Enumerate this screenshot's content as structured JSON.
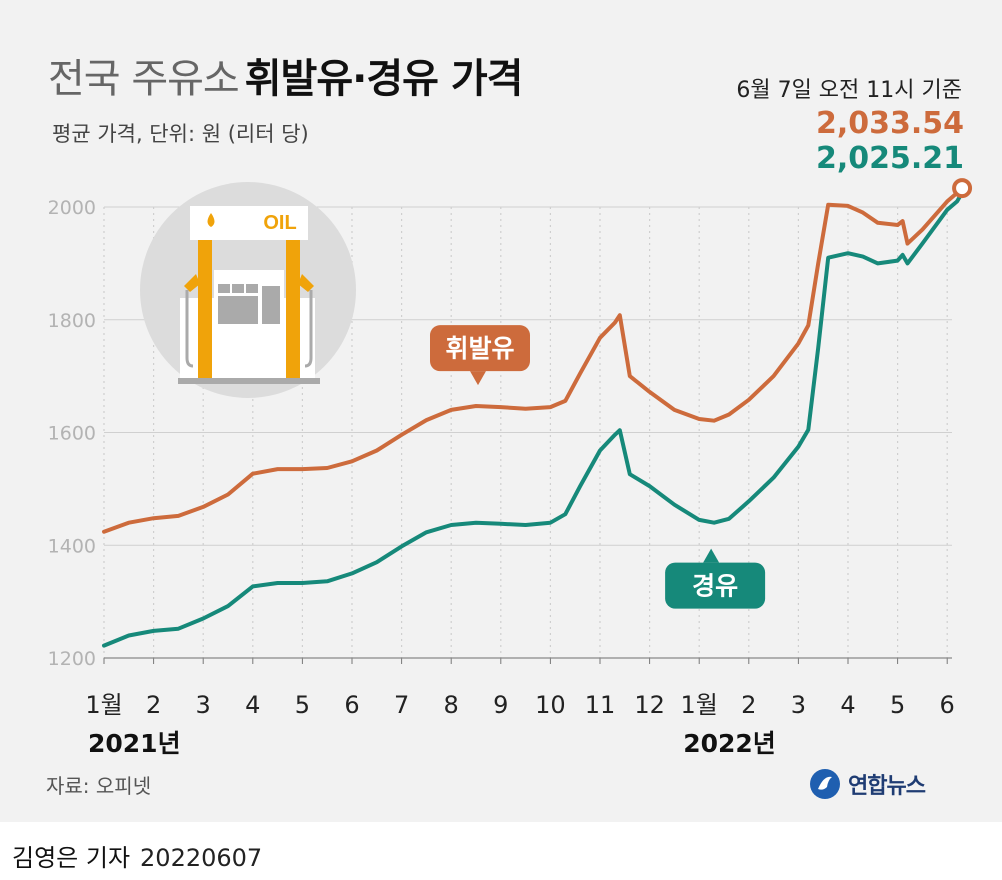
{
  "title": {
    "light": "전국 주유소",
    "bold": "휘발유·경유 가격"
  },
  "subtitle": "평균 가격, 단위: 원 (리터 당)",
  "as_of": "6월 7일 오전 11시 기준",
  "latest": {
    "gasoline": "2,033.54",
    "diesel": "2,025.21"
  },
  "source": "자료: 오피넷",
  "logo_text": "연합뉴스",
  "byline": {
    "name": "김영은 기자",
    "date": "20220607"
  },
  "icon": {
    "oil_sign": "OIL"
  },
  "colors": {
    "gasoline": "#cd6b3c",
    "diesel": "#16897a",
    "pump": "#f0a30a"
  },
  "chart_data": {
    "type": "line",
    "title": "전국 주유소 휘발유·경유 가격",
    "xlabel": "",
    "ylabel": "",
    "ylim": [
      1200,
      2000
    ],
    "yticks": [
      1200,
      1400,
      1600,
      1800,
      2000
    ],
    "grid": true,
    "xaxis": {
      "ticks": [
        {
          "label": "1월",
          "m": 0
        },
        {
          "label": "2",
          "m": 1
        },
        {
          "label": "3",
          "m": 2
        },
        {
          "label": "4",
          "m": 3
        },
        {
          "label": "5",
          "m": 4
        },
        {
          "label": "6",
          "m": 5
        },
        {
          "label": "7",
          "m": 6
        },
        {
          "label": "8",
          "m": 7
        },
        {
          "label": "9",
          "m": 8
        },
        {
          "label": "10",
          "m": 9
        },
        {
          "label": "11",
          "m": 10
        },
        {
          "label": "12",
          "m": 11
        },
        {
          "label": "1월",
          "m": 12
        },
        {
          "label": "2",
          "m": 13
        },
        {
          "label": "3",
          "m": 14
        },
        {
          "label": "4",
          "m": 15
        },
        {
          "label": "5",
          "m": 16
        },
        {
          "label": "6",
          "m": 17
        }
      ],
      "year_labels": [
        {
          "label": "2021년",
          "m": 0
        },
        {
          "label": "2022년",
          "m": 12
        }
      ]
    },
    "series": [
      {
        "name": "휘발유",
        "label_anchor": [
          7.5,
          1652
        ],
        "points": [
          [
            0,
            1424
          ],
          [
            0.5,
            1440
          ],
          [
            1,
            1448
          ],
          [
            1.5,
            1452
          ],
          [
            2,
            1468
          ],
          [
            2.5,
            1490
          ],
          [
            3,
            1527
          ],
          [
            3.5,
            1535
          ],
          [
            4,
            1535
          ],
          [
            4.5,
            1537
          ],
          [
            5,
            1549
          ],
          [
            5.5,
            1568
          ],
          [
            6,
            1596
          ],
          [
            6.5,
            1622
          ],
          [
            7,
            1640
          ],
          [
            7.5,
            1647
          ],
          [
            8,
            1645
          ],
          [
            8.5,
            1642
          ],
          [
            9,
            1645
          ],
          [
            9.3,
            1656
          ],
          [
            9.6,
            1705
          ],
          [
            10,
            1768
          ],
          [
            10.3,
            1795
          ],
          [
            10.4,
            1808
          ],
          [
            10.6,
            1700
          ],
          [
            11,
            1672
          ],
          [
            11.5,
            1640
          ],
          [
            12,
            1624
          ],
          [
            12.3,
            1621
          ],
          [
            12.6,
            1632
          ],
          [
            13,
            1658
          ],
          [
            13.5,
            1700
          ],
          [
            14,
            1758
          ],
          [
            14.2,
            1790
          ],
          [
            14.4,
            1900
          ],
          [
            14.6,
            2004
          ],
          [
            15,
            2002
          ],
          [
            15.3,
            1990
          ],
          [
            15.6,
            1972
          ],
          [
            16,
            1968
          ],
          [
            16.1,
            1975
          ],
          [
            16.2,
            1935
          ],
          [
            16.5,
            1960
          ],
          [
            17,
            2010
          ],
          [
            17.2,
            2025
          ],
          [
            17.3,
            2033.54
          ]
        ]
      },
      {
        "name": "경유",
        "label_anchor": [
          12.2,
          1426
        ],
        "points": [
          [
            0,
            1222
          ],
          [
            0.5,
            1240
          ],
          [
            1,
            1248
          ],
          [
            1.5,
            1252
          ],
          [
            2,
            1270
          ],
          [
            2.5,
            1292
          ],
          [
            3,
            1327
          ],
          [
            3.5,
            1333
          ],
          [
            4,
            1333
          ],
          [
            4.5,
            1336
          ],
          [
            5,
            1350
          ],
          [
            5.5,
            1370
          ],
          [
            6,
            1398
          ],
          [
            6.5,
            1423
          ],
          [
            7,
            1436
          ],
          [
            7.5,
            1440
          ],
          [
            8,
            1438
          ],
          [
            8.5,
            1436
          ],
          [
            9,
            1440
          ],
          [
            9.3,
            1455
          ],
          [
            9.6,
            1505
          ],
          [
            10,
            1568
          ],
          [
            10.3,
            1596
          ],
          [
            10.4,
            1604
          ],
          [
            10.6,
            1526
          ],
          [
            11,
            1505
          ],
          [
            11.5,
            1472
          ],
          [
            12,
            1445
          ],
          [
            12.3,
            1440
          ],
          [
            12.6,
            1447
          ],
          [
            13,
            1478
          ],
          [
            13.5,
            1520
          ],
          [
            14,
            1575
          ],
          [
            14.2,
            1605
          ],
          [
            14.4,
            1750
          ],
          [
            14.6,
            1910
          ],
          [
            15,
            1918
          ],
          [
            15.3,
            1912
          ],
          [
            15.6,
            1900
          ],
          [
            16,
            1905
          ],
          [
            16.1,
            1915
          ],
          [
            16.2,
            1900
          ],
          [
            16.5,
            1935
          ],
          [
            17,
            1995
          ],
          [
            17.2,
            2010
          ],
          [
            17.3,
            2025.21
          ]
        ]
      }
    ]
  }
}
